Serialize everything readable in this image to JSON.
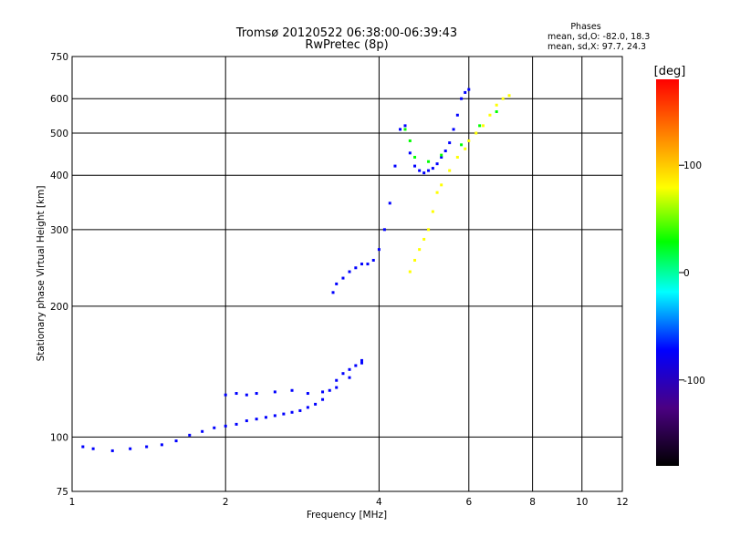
{
  "title_line1": "Tromsø 20120522 06:38:00-06:39:43",
  "title_line2": "RwPretec (8p)",
  "phases": {
    "heading": "Phases",
    "line_o": "mean, sd,O: -82.0, 18.3",
    "line_x": "mean, sd,X: 97.7, 24.3"
  },
  "colorbar": {
    "unit_label": "[deg]",
    "range": [
      -180,
      180
    ],
    "ticks": [
      100,
      0,
      -100
    ],
    "stops": [
      "#000000",
      "#4b0082",
      "#0000ff",
      "#00ffff",
      "#00ff00",
      "#ffff00",
      "#ff8000",
      "#ff0000"
    ]
  },
  "chart_data": {
    "type": "scatter",
    "xlabel": "Frequency [MHz]",
    "ylabel": "Stationary phase Virtual Height [km]",
    "x_scale": "log",
    "y_scale": "log",
    "xlim": [
      1,
      12
    ],
    "ylim": [
      75,
      750
    ],
    "x_ticks": [
      1,
      2,
      4,
      6,
      8,
      10,
      12
    ],
    "y_ticks": [
      75,
      100,
      200,
      300,
      400,
      500,
      600,
      750
    ],
    "grid": true,
    "grid_x": [
      2,
      4,
      6,
      8,
      10
    ],
    "grid_y": [
      100,
      200,
      300,
      400,
      500,
      600
    ],
    "series": [
      {
        "color_by_phase_deg": -100,
        "x": [
          1.05,
          1.1,
          1.2,
          1.3,
          1.4,
          1.5,
          1.6,
          1.7,
          1.8,
          1.9,
          2.0,
          2.1,
          2.2,
          2.3,
          2.4,
          2.5,
          2.6,
          2.7,
          2.8,
          2.9,
          3.0,
          3.1,
          3.2,
          3.3,
          3.4,
          3.5,
          3.6,
          3.7
        ],
        "y": [
          95,
          94,
          93,
          94,
          95,
          96,
          98,
          101,
          103,
          105,
          106,
          107,
          109,
          110,
          111,
          112,
          113,
          114,
          115,
          117,
          119,
          122,
          128,
          135,
          140,
          143,
          146,
          150
        ]
      },
      {
        "color_by_phase_deg": -100,
        "x": [
          2.0,
          2.1,
          2.2,
          2.3,
          2.5,
          2.7,
          2.9,
          3.1,
          3.3,
          3.5,
          3.7
        ],
        "y": [
          125,
          126,
          125,
          126,
          127,
          128,
          126,
          127,
          130,
          137,
          148
        ]
      },
      {
        "color_by_phase_deg": -100,
        "x": [
          3.25,
          3.3,
          3.4,
          3.5,
          3.6,
          3.7,
          3.8,
          3.9,
          4.0,
          4.1,
          4.2,
          4.3,
          4.4,
          4.5,
          4.6,
          4.7,
          4.8,
          4.9,
          5.0,
          5.1,
          5.2,
          5.3,
          5.4,
          5.5,
          5.6,
          5.7,
          5.8,
          5.9,
          6.0
        ],
        "y": [
          215,
          225,
          232,
          240,
          245,
          250,
          250,
          255,
          270,
          300,
          345,
          420,
          510,
          520,
          450,
          420,
          410,
          405,
          410,
          415,
          425,
          440,
          455,
          475,
          510,
          550,
          600,
          620,
          630
        ]
      },
      {
        "color_by_phase_deg": 100,
        "x": [
          4.6,
          4.7,
          4.8,
          4.9,
          5.0,
          5.1,
          5.2,
          5.3,
          5.5,
          5.7,
          5.9,
          6.0,
          6.2,
          6.4,
          6.6,
          6.8,
          7.0,
          7.2
        ],
        "y": [
          240,
          255,
          270,
          285,
          300,
          330,
          365,
          380,
          410,
          440,
          460,
          480,
          500,
          520,
          550,
          580,
          600,
          610
        ]
      },
      {
        "color_by_phase_deg": 0,
        "x": [
          4.5,
          4.6,
          4.7,
          5.0,
          5.3,
          5.8,
          6.3,
          6.8
        ],
        "y": [
          510,
          480,
          440,
          430,
          445,
          470,
          520,
          560
        ]
      }
    ]
  }
}
